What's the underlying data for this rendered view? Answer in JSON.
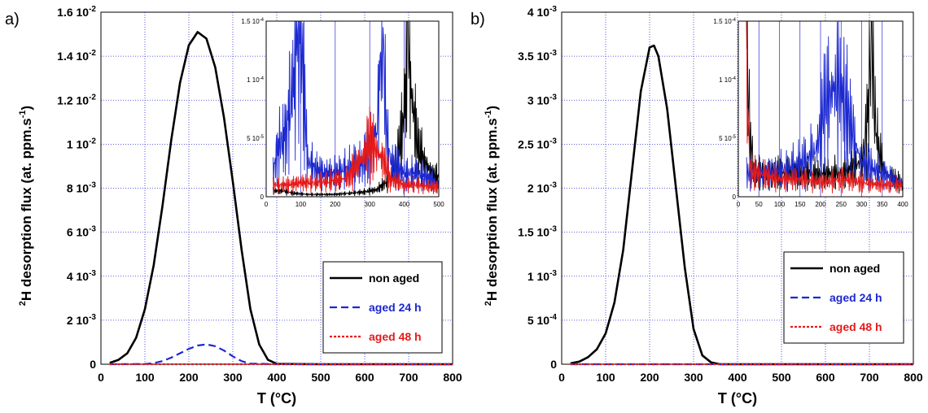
{
  "figure": {
    "panels": [
      {
        "id": "a",
        "label": "a)",
        "xlabel": "T (°C)",
        "ylabel_sup": "2",
        "ylabel_main": "H desorption flux (at. ppm.s",
        "ylabel_exp": "-1",
        "ylabel_end": ")"
      },
      {
        "id": "b",
        "label": "b)",
        "xlabel": "T (°C)",
        "ylabel_sup": "2",
        "ylabel_main": "H desorption flux (at. ppm.s",
        "ylabel_exp": "-1",
        "ylabel_end": ")"
      }
    ]
  },
  "chart_data": [
    {
      "type": "line",
      "panel": "a",
      "xlabel": "T (°C)",
      "ylabel": "2H desorption flux (at. ppm.s-1)",
      "xlim": [
        0,
        800
      ],
      "ylim": [
        0,
        0.016
      ],
      "xticks": [
        0,
        100,
        200,
        300,
        400,
        500,
        600,
        700,
        800
      ],
      "yticks": [
        {
          "v": 0,
          "label": "0"
        },
        {
          "v": 0.002,
          "label": "2 10-3"
        },
        {
          "v": 0.004,
          "label": "4 10-3"
        },
        {
          "v": 0.006,
          "label": "6 10-3"
        },
        {
          "v": 0.008,
          "label": "8 10-3"
        },
        {
          "v": 0.01,
          "label": "1 10-2"
        },
        {
          "v": 0.012,
          "label": "1.2 10-2"
        },
        {
          "v": 0.014,
          "label": "1.4 10-2"
        },
        {
          "v": 0.016,
          "label": "1.6 10-2"
        }
      ],
      "grid": true,
      "legend_position": "lower-right",
      "series": [
        {
          "name": "non aged",
          "color": "#000000",
          "dash": "solid",
          "x": [
            20,
            40,
            60,
            80,
            100,
            120,
            140,
            160,
            180,
            200,
            220,
            240,
            260,
            280,
            300,
            320,
            340,
            360,
            380,
            400,
            500,
            600,
            700,
            800
          ],
          "y": [
            6e-05,
            0.0002,
            0.0005,
            0.0012,
            0.0025,
            0.0045,
            0.0072,
            0.0102,
            0.0128,
            0.0145,
            0.0151,
            0.0148,
            0.0135,
            0.0112,
            0.0083,
            0.0052,
            0.0025,
            0.0009,
            0.0002,
            2e-05,
            0,
            0,
            0,
            0
          ]
        },
        {
          "name": "aged 24 h",
          "color": "#1c28d0",
          "dash": "dashed",
          "x": [
            20,
            100,
            120,
            140,
            160,
            180,
            200,
            220,
            240,
            260,
            280,
            300,
            320,
            340,
            400,
            800
          ],
          "y": [
            0,
            1e-05,
            5e-05,
            0.00014,
            0.0003,
            0.0005,
            0.0007,
            0.00085,
            0.0009,
            0.00082,
            0.00062,
            0.00036,
            0.00014,
            3e-05,
            0,
            0
          ]
        },
        {
          "name": "aged 48 h",
          "color": "#e51a1a",
          "dash": "dotted",
          "x": [
            20,
            800
          ],
          "y": [
            0,
            0
          ]
        }
      ],
      "inset": {
        "xlim": [
          0,
          500
        ],
        "ylim": [
          0,
          0.00015
        ],
        "xticks": [
          0,
          100,
          200,
          300,
          400,
          500
        ],
        "yticks": [
          {
            "v": 0,
            "label": "0"
          },
          {
            "v": 5e-05,
            "label": "5 10-5"
          },
          {
            "v": 0.0001,
            "label": "1 10-4"
          },
          {
            "v": 0.00015,
            "label": "1.5 10-4"
          }
        ],
        "series": [
          {
            "name": "non aged",
            "color": "#000000",
            "x": [
              20,
              50,
              80,
              120,
              160,
              200,
              240,
              280,
              320,
              360,
              380,
              400,
              410,
              420,
              440,
              460,
              480,
              500
            ],
            "y": [
              5e-06,
              5e-06,
              3e-06,
              2e-06,
              2e-06,
              2e-06,
              3e-06,
              4e-06,
              6e-06,
              1.5e-05,
              3e-05,
              7e-05,
              0.00015,
              9e-05,
              4e-05,
              3e-05,
              2e-05,
              1.5e-05
            ]
          },
          {
            "name": "aged 24 h",
            "color": "#1c28d0",
            "x": [
              20,
              30,
              40,
              50,
              60,
              70,
              80,
              90,
              100,
              120,
              160,
              200,
              240,
              280,
              300,
              320,
              330,
              335,
              340,
              345,
              350,
              360,
              380,
              400,
              440,
              480,
              500
            ],
            "y": [
              2e-05,
              3.5e-05,
              4.5e-05,
              5e-05,
              6e-05,
              8e-05,
              0.0001,
              0.00013,
              0.00015,
              3e-05,
              2e-05,
              2e-05,
              2.5e-05,
              3e-05,
              4e-05,
              6e-05,
              0.0001,
              0.00015,
              0.00012,
              8e-05,
              5e-05,
              3e-05,
              2.5e-05,
              2e-05,
              2e-05,
              1.5e-05,
              1e-05
            ]
          },
          {
            "name": "aged 48 h",
            "color": "#e51a1a",
            "x": [
              20,
              60,
              100,
              140,
              180,
              220,
              240,
              260,
              280,
              300,
              320,
              340,
              360,
              400,
              440,
              480,
              500
            ],
            "y": [
              1e-05,
              1e-05,
              1.2e-05,
              1.2e-05,
              1.3e-05,
              1.5e-05,
              1.8e-05,
              2.5e-05,
              3.5e-05,
              4.5e-05,
              4e-05,
              3e-05,
              1.5e-05,
              1e-05,
              1e-05,
              8e-06,
              8e-06
            ]
          }
        ]
      }
    },
    {
      "type": "line",
      "panel": "b",
      "xlabel": "T (°C)",
      "ylabel": "2H desorption flux (at. ppm.s-1)",
      "xlim": [
        0,
        800
      ],
      "ylim": [
        0,
        0.004
      ],
      "xticks": [
        0,
        100,
        200,
        300,
        400,
        500,
        600,
        700,
        800
      ],
      "yticks": [
        {
          "v": 0,
          "label": "0"
        },
        {
          "v": 0.0005,
          "label": "5 10-4"
        },
        {
          "v": 0.001,
          "label": "1 10-3"
        },
        {
          "v": 0.0015,
          "label": "1.5 10-3"
        },
        {
          "v": 0.002,
          "label": "2 10-3"
        },
        {
          "v": 0.0025,
          "label": "2.5 10-3"
        },
        {
          "v": 0.003,
          "label": "3 10-3"
        },
        {
          "v": 0.0035,
          "label": "3.5 10-3"
        },
        {
          "v": 0.004,
          "label": "4 10-3"
        }
      ],
      "grid": true,
      "legend_position": "lower-right",
      "series": [
        {
          "name": "non aged",
          "color": "#000000",
          "dash": "solid",
          "x": [
            20,
            40,
            60,
            80,
            100,
            120,
            140,
            160,
            180,
            200,
            210,
            220,
            240,
            260,
            280,
            300,
            320,
            340,
            360,
            400,
            500,
            600,
            700,
            800
          ],
          "y": [
            1e-05,
            3e-05,
            8e-05,
            0.00017,
            0.00035,
            0.0007,
            0.0013,
            0.0022,
            0.0031,
            0.0036,
            0.00362,
            0.0035,
            0.0029,
            0.002,
            0.0011,
            0.0004,
            0.0001,
            2e-05,
            0,
            0,
            0,
            0,
            0,
            0
          ]
        },
        {
          "name": "aged 24 h",
          "color": "#1c28d0",
          "dash": "dashed",
          "x": [
            20,
            800
          ],
          "y": [
            0,
            0
          ]
        },
        {
          "name": "aged 48 h",
          "color": "#e51a1a",
          "dash": "dotted",
          "x": [
            20,
            800
          ],
          "y": [
            0,
            0
          ]
        }
      ],
      "inset": {
        "xlim": [
          0,
          400
        ],
        "ylim": [
          0,
          0.00015
        ],
        "xticks": [
          0,
          50,
          100,
          150,
          200,
          250,
          300,
          350,
          400
        ],
        "yticks": [
          {
            "v": 0,
            "label": "0"
          },
          {
            "v": 5e-05,
            "label": "5 10-5"
          },
          {
            "v": 0.0001,
            "label": "1 10-4"
          },
          {
            "v": 0.00015,
            "label": "1.5 10-4"
          }
        ],
        "series": [
          {
            "name": "non aged",
            "color": "#000000",
            "x": [
              20,
              22,
              25,
              30,
              40,
              60,
              100,
              150,
              200,
              250,
              300,
              310,
              320,
              325,
              330,
              340,
              360,
              380,
              400
            ],
            "y": [
              0.00015,
              0.00012,
              9e-05,
              5e-05,
              2e-05,
              2e-05,
              2e-05,
              2e-05,
              2e-05,
              2e-05,
              3e-05,
              5e-05,
              0.0001,
              0.00015,
              8e-05,
              4e-05,
              2e-05,
              1.5e-05,
              1e-05
            ]
          },
          {
            "name": "aged 24 h",
            "color": "#1c28d0",
            "x": [
              20,
              40,
              80,
              120,
              160,
              190,
              210,
              230,
              245,
              260,
              280,
              300,
              320,
              350,
              380,
              400
            ],
            "y": [
              2e-05,
              2e-05,
              2e-05,
              2.5e-05,
              3e-05,
              4e-05,
              8e-05,
              9e-05,
              9.5e-05,
              8e-05,
              5e-05,
              3e-05,
              2.5e-05,
              2e-05,
              1.5e-05,
              1.2e-05
            ]
          },
          {
            "name": "aged 48 h",
            "color": "#e51a1a",
            "x": [
              20,
              25,
              30,
              50,
              100,
              150,
              200,
              250,
              300,
              350,
              400
            ],
            "y": [
              0.0001,
              5e-05,
              2e-05,
              2e-05,
              1.5e-05,
              1.5e-05,
              1.2e-05,
              1.5e-05,
              1.2e-05,
              1e-05,
              1e-05
            ]
          }
        ]
      }
    }
  ]
}
